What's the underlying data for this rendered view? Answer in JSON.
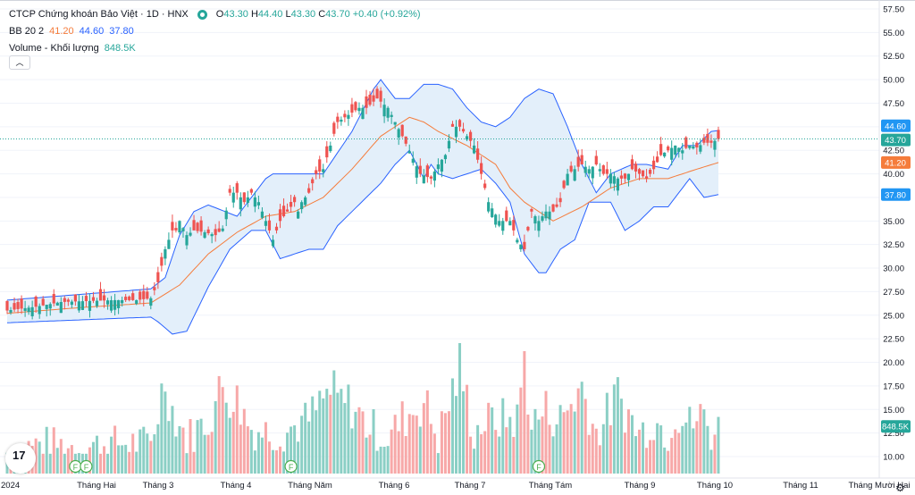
{
  "header": {
    "symbol_title": "CTCP Chứng khoán Bảo Việt · 1D · HNX",
    "ohlc": {
      "o_label": "O",
      "o": "43.30",
      "h_label": "H",
      "h": "44.40",
      "l_label": "L",
      "l": "43.30",
      "c_label": "C",
      "c": "43.70",
      "change": "+0.40 (+0.92%)"
    },
    "bb_name": "BB 20 2",
    "bb_basis": "41.20",
    "bb_upper": "44.60",
    "bb_lower": "37.80",
    "volume_name": "Volume - Khối lượng",
    "volume_value": "848.5K",
    "collapse_icon": "chevron-up-icon"
  },
  "colors": {
    "up": "#26a69a",
    "down": "#ef5350",
    "vol_up": "#8bcfc5",
    "vol_down": "#f7a8a8",
    "basis": "#f57c3b",
    "band": "#2962ff",
    "band_fill": "#e3effa",
    "last": "#26a69a"
  },
  "chart_data": [
    {
      "type": "candlestick",
      "title": "CTCP Chứng khoán Bảo Việt · 1D · HNX",
      "ylim": [
        7.5,
        57.5
      ],
      "y_ticks": [
        "57.50",
        "55.00",
        "52.50",
        "50.00",
        "47.50",
        "45.00",
        "42.50",
        "40.00",
        "37.50",
        "35.00",
        "32.50",
        "30.00",
        "27.50",
        "25.00",
        "22.50",
        "20.00",
        "17.50",
        "15.00",
        "12.50",
        "10.00"
      ],
      "x_ticks": [
        "2024",
        "Tháng Hai",
        "Tháng 3",
        "Tháng 4",
        "Tháng Năm",
        "Tháng 6",
        "Tháng 7",
        "Tháng Tám",
        "Tháng 9",
        "Tháng 10",
        "Tháng 11",
        "Tháng Mười Hai"
      ],
      "price_anchors": {
        "days": [
          0,
          8,
          15,
          22,
          30,
          36,
          40,
          42,
          44,
          46,
          47,
          48,
          50,
          52,
          55,
          58,
          60,
          62,
          64,
          66,
          68,
          70,
          72,
          74,
          76,
          78,
          80,
          81,
          82,
          84,
          86,
          88,
          90,
          92,
          94,
          96,
          98,
          100,
          103,
          106,
          110,
          115,
          118,
          120,
          122,
          124,
          126,
          128,
          130,
          132,
          134,
          137,
          140,
          142,
          144,
          146,
          148,
          150,
          152,
          154,
          156,
          158,
          160,
          162,
          164,
          166,
          168,
          170,
          172,
          174,
          176,
          178,
          180,
          182,
          184,
          186,
          188,
          190,
          192,
          194,
          196,
          198
        ],
        "close": [
          25.5,
          25.9,
          26.4,
          26.5,
          26.6,
          26.6,
          26.8,
          28.5,
          32,
          34,
          34,
          35,
          33.5,
          34,
          33.8,
          33.5,
          34.2,
          38,
          38,
          37,
          38,
          37,
          35,
          33,
          35,
          36,
          37,
          36,
          37,
          38,
          40,
          40.5,
          43,
          45.5,
          46,
          46.5,
          47,
          47,
          48,
          47,
          44,
          40,
          39.5,
          41,
          42,
          45,
          45,
          44,
          43,
          40,
          37,
          35,
          35,
          33,
          32,
          36,
          35,
          36,
          36,
          37,
          40,
          40.5,
          41,
          40.5,
          41,
          40,
          40,
          39.5,
          39.5,
          40.5,
          40,
          39.5,
          40.5,
          42,
          42.5,
          43,
          42.5,
          43,
          42.8,
          43.3,
          43.3,
          43.7
        ]
      },
      "bollinger": {
        "basis_anchors": {
          "days": [
            0,
            20,
            40,
            48,
            56,
            64,
            72,
            80,
            88,
            96,
            104,
            112,
            116,
            120,
            128,
            136,
            140,
            144,
            152,
            160,
            168,
            176,
            184,
            192,
            198
          ],
          "values": [
            25.2,
            25.8,
            26.3,
            28.2,
            31.5,
            33.8,
            35.5,
            36,
            37.5,
            40.5,
            44,
            46,
            45.5,
            44.5,
            43,
            41,
            38.5,
            37,
            35,
            36.5,
            38.5,
            39.5,
            39.5,
            40.5,
            41.2
          ]
        },
        "upper_anchors": {
          "days": [
            0,
            20,
            40,
            44,
            48,
            52,
            56,
            64,
            72,
            74,
            80,
            88,
            96,
            102,
            104,
            108,
            112,
            116,
            120,
            124,
            128,
            132,
            136,
            140,
            144,
            148,
            152,
            156,
            160,
            164,
            168,
            174,
            178,
            184,
            188,
            192,
            196,
            198
          ],
          "values": [
            26.6,
            27.2,
            27.8,
            29,
            33.5,
            36,
            36.7,
            35.5,
            39.5,
            40,
            40,
            40,
            44.5,
            49,
            50,
            48,
            48,
            49.5,
            49.5,
            49,
            47,
            45.5,
            45,
            46,
            48,
            49,
            48.5,
            45,
            41,
            38,
            40,
            41,
            41,
            40.5,
            43,
            43,
            44.5,
            44.6
          ]
        },
        "lower_anchors": {
          "days": [
            0,
            20,
            40,
            42,
            46,
            50,
            56,
            62,
            68,
            72,
            76,
            80,
            84,
            88,
            92,
            96,
            100,
            104,
            108,
            112,
            116,
            118,
            120,
            124,
            128,
            132,
            136,
            140,
            144,
            148,
            150,
            154,
            158,
            160,
            162,
            168,
            172,
            176,
            180,
            184,
            190,
            194,
            198
          ],
          "values": [
            24.2,
            24.5,
            24.8,
            24.3,
            23,
            23.3,
            28,
            32,
            34,
            34,
            31,
            31.5,
            32,
            32,
            34.5,
            36,
            37.5,
            39,
            41,
            42.5,
            39.5,
            41,
            40,
            39.5,
            40,
            40.5,
            39,
            37,
            31.5,
            29.5,
            29.5,
            32,
            33,
            35,
            37,
            37,
            34,
            35,
            36.5,
            36.5,
            39.5,
            37.5,
            37.8
          ]
        }
      },
      "volume_anchors": {
        "days": [
          0,
          10,
          20,
          30,
          40,
          44,
          46,
          50,
          56,
          60,
          64,
          68,
          76,
          84,
          90,
          92,
          96,
          100,
          106,
          110,
          116,
          120,
          126,
          130,
          132,
          136,
          140,
          142,
          144,
          146,
          150,
          154,
          160,
          164,
          170,
          176,
          180,
          184,
          186,
          190,
          194,
          196,
          198
        ],
        "values": [
          10.5,
          11.5,
          11,
          11.5,
          11.5,
          18.5,
          15,
          12,
          14,
          17.5,
          16,
          13,
          12.5,
          14,
          17,
          16,
          15.5,
          13.5,
          12,
          14,
          16,
          12,
          19.5,
          12.5,
          13.5,
          14,
          14,
          14,
          20.5,
          13.5,
          15,
          14,
          17.5,
          12.5,
          16.5,
          12.5,
          14,
          12.5,
          15,
          13.5,
          14.5,
          12.5,
          13
        ]
      }
    }
  ],
  "last_labels": {
    "upper": "44.60",
    "close": "43.70",
    "basis": "41.20",
    "lower": "37.80",
    "volume": "848.5K"
  },
  "markers": [
    "F",
    "F",
    "F",
    "F"
  ],
  "logo_text": "17",
  "settings_icon": "gear-icon"
}
